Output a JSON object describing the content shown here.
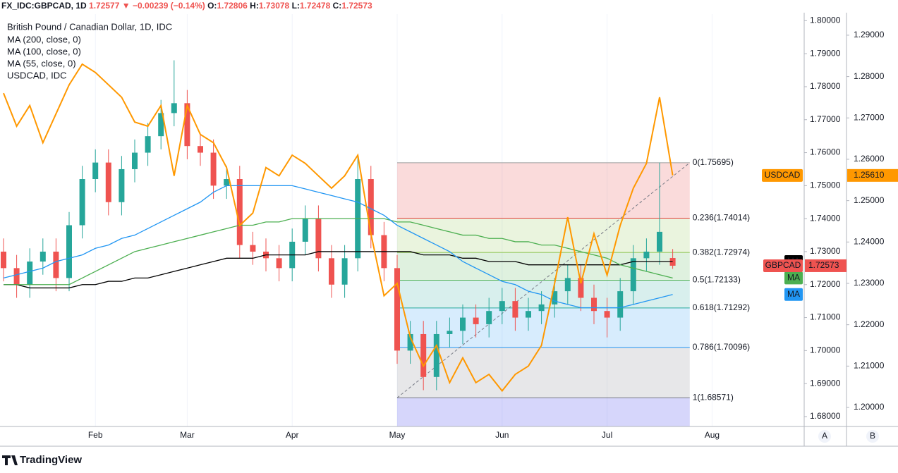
{
  "header": {
    "symbol": "FX_IDC:GBPCAD, 1D",
    "last": "1.72577",
    "arrow": "▼",
    "change": "−0.00239 (−0.14%)",
    "o_label": "O:",
    "o": "1.72806",
    "h_label": "H:",
    "h": "1.73078",
    "l_label": "L:",
    "l": "1.72478",
    "c_label": "C:",
    "c": "1.72573"
  },
  "chart_data": {
    "type": "candlestick",
    "title": "British Pound / Canadian Dollar, 1D, IDC",
    "categories": [
      null,
      null,
      null,
      null,
      null,
      null,
      null,
      "Feb",
      null,
      null,
      null,
      null,
      null,
      null,
      "Mar",
      null,
      null,
      null,
      null,
      null,
      null,
      null,
      "Apr",
      null,
      null,
      null,
      null,
      null,
      null,
      null,
      "May",
      null,
      null,
      null,
      null,
      null,
      null,
      null,
      "Jun",
      null,
      null,
      null,
      null,
      null,
      null,
      null,
      "Jul",
      null,
      null,
      null,
      null,
      null,
      null,
      null,
      "Aug"
    ],
    "open": [
      1.73,
      1.725,
      1.72,
      1.727,
      1.73,
      1.722,
      1.738,
      1.752,
      1.757,
      1.745,
      1.755,
      1.76,
      1.765,
      1.772,
      1.775,
      1.762,
      1.76,
      1.75,
      1.752,
      1.732,
      1.73,
      1.728,
      1.725,
      1.733,
      1.74,
      1.728,
      1.72,
      1.728,
      1.752,
      1.735,
      1.725,
      1.7,
      1.705,
      1.692,
      1.705,
      1.706,
      1.71,
      1.708,
      1.712,
      1.715,
      1.71,
      1.712,
      1.714,
      1.718,
      1.722,
      1.716,
      1.712,
      1.71,
      1.718,
      1.728,
      1.73,
      1.72806,
      null,
      null,
      null
    ],
    "high": [
      1.734,
      1.729,
      1.731,
      1.734,
      1.734,
      1.742,
      1.756,
      1.761,
      1.761,
      1.759,
      1.764,
      1.769,
      1.776,
      1.788,
      1.779,
      1.766,
      1.764,
      1.756,
      1.756,
      1.736,
      1.734,
      1.732,
      1.737,
      1.744,
      1.744,
      1.732,
      1.732,
      1.759,
      1.756,
      1.739,
      1.729,
      1.709,
      1.709,
      1.709,
      1.71,
      1.714,
      1.714,
      1.716,
      1.719,
      1.719,
      1.716,
      1.718,
      1.722,
      1.726,
      1.726,
      1.72,
      1.716,
      1.722,
      1.732,
      1.734,
      1.757,
      1.73078,
      null,
      null,
      null
    ],
    "low": [
      1.721,
      1.716,
      1.716,
      1.723,
      1.718,
      1.718,
      1.734,
      1.748,
      1.741,
      1.741,
      1.751,
      1.756,
      1.761,
      1.768,
      1.758,
      1.756,
      1.746,
      1.746,
      1.728,
      1.726,
      1.724,
      1.721,
      1.721,
      1.729,
      1.724,
      1.716,
      1.716,
      1.724,
      1.731,
      1.721,
      1.696,
      1.696,
      1.688,
      1.688,
      1.701,
      1.702,
      1.704,
      1.704,
      1.708,
      1.706,
      1.706,
      1.708,
      1.71,
      1.714,
      1.712,
      1.708,
      1.704,
      1.706,
      1.714,
      1.724,
      1.726,
      1.72478,
      null,
      null,
      null
    ],
    "close": [
      1.725,
      1.72,
      1.727,
      1.73,
      1.722,
      1.738,
      1.752,
      1.757,
      1.745,
      1.755,
      1.76,
      1.765,
      1.772,
      1.775,
      1.762,
      1.76,
      1.75,
      1.752,
      1.732,
      1.73,
      1.728,
      1.725,
      1.733,
      1.74,
      1.728,
      1.72,
      1.728,
      1.752,
      1.735,
      1.725,
      1.7,
      1.705,
      1.692,
      1.705,
      1.706,
      1.71,
      1.708,
      1.712,
      1.715,
      1.71,
      1.712,
      1.714,
      1.718,
      1.722,
      1.716,
      1.712,
      1.71,
      1.718,
      1.728,
      1.73,
      1.736,
      1.72573,
      null,
      null,
      null
    ],
    "up_color": "#26a69a",
    "down_color": "#ef5350",
    "ylim": [
      1.677,
      1.802
    ],
    "yticks": [
      {
        "value": 1.68,
        "label": "1.68000"
      },
      {
        "value": 1.69,
        "label": "1.69000"
      },
      {
        "value": 1.7,
        "label": "1.70000"
      },
      {
        "value": 1.71,
        "label": "1.71000"
      },
      {
        "value": 1.72,
        "label": "1.72000"
      },
      {
        "value": 1.73,
        "label": "1.73000"
      },
      {
        "value": 1.74,
        "label": "1.74000"
      },
      {
        "value": 1.75,
        "label": "1.75000"
      },
      {
        "value": 1.76,
        "label": "1.76000"
      },
      {
        "value": 1.77,
        "label": "1.77000"
      },
      {
        "value": 1.78,
        "label": "1.78000"
      },
      {
        "value": 1.79,
        "label": "1.79000"
      },
      {
        "value": 1.8,
        "label": "1.80000"
      }
    ],
    "y2lim": [
      1.1954,
      1.2951
    ],
    "y2ticks": [
      {
        "value": 1.2,
        "label": "1.20000"
      },
      {
        "value": 1.21,
        "label": "1.21000"
      },
      {
        "value": 1.22,
        "label": "1.22000"
      },
      {
        "value": 1.23,
        "label": "1.23000"
      },
      {
        "value": 1.24,
        "label": "1.24000"
      },
      {
        "value": 1.25,
        "label": "1.25000"
      },
      {
        "value": 1.26,
        "label": "1.26000"
      },
      {
        "value": 1.27,
        "label": "1.27000"
      },
      {
        "value": 1.28,
        "label": "1.28000"
      },
      {
        "value": 1.29,
        "label": "1.29000"
      }
    ],
    "grid": true,
    "series": [
      {
        "name": "MA (200, close, 0)",
        "tag": "MA",
        "color": "#000000",
        "values": [
          1.72,
          1.72,
          1.719,
          1.719,
          1.719,
          1.719,
          1.72,
          1.72,
          1.721,
          1.721,
          1.722,
          1.722,
          1.723,
          1.724,
          1.725,
          1.726,
          1.727,
          1.728,
          1.728,
          1.728,
          1.729,
          1.729,
          1.729,
          1.729,
          1.73,
          1.73,
          1.73,
          1.73,
          1.73,
          1.73,
          1.73,
          1.73,
          1.729,
          1.729,
          1.729,
          1.728,
          1.728,
          1.727,
          1.727,
          1.727,
          1.726,
          1.726,
          1.726,
          1.726,
          1.726,
          1.726,
          1.726,
          1.726,
          1.727,
          1.727,
          1.727,
          1.727,
          null,
          null,
          null
        ]
      },
      {
        "name": "MA (100, close, 0)",
        "tag": "MA",
        "color": "#4caf50",
        "values": [
          1.72,
          1.72,
          1.72,
          1.72,
          1.72,
          1.72,
          1.722,
          1.724,
          1.726,
          1.728,
          1.73,
          1.731,
          1.732,
          1.733,
          1.734,
          1.735,
          1.736,
          1.737,
          1.738,
          1.738,
          1.739,
          1.739,
          1.74,
          1.74,
          1.74,
          1.74,
          1.74,
          1.74,
          1.74,
          1.74,
          1.739,
          1.739,
          1.738,
          1.737,
          1.736,
          1.735,
          1.735,
          1.734,
          1.734,
          1.733,
          1.733,
          1.732,
          1.732,
          1.731,
          1.73,
          1.729,
          1.728,
          1.726,
          1.725,
          1.724,
          1.723,
          1.722,
          null,
          null,
          null
        ]
      },
      {
        "name": "MA (55, close, 0)",
        "tag": "MA",
        "color": "#2196f3",
        "values": [
          1.722,
          1.723,
          1.724,
          1.725,
          1.727,
          1.728,
          1.729,
          1.731,
          1.732,
          1.734,
          1.735,
          1.737,
          1.739,
          1.741,
          1.743,
          1.745,
          1.748,
          1.75,
          1.75,
          1.75,
          1.75,
          1.75,
          1.75,
          1.749,
          1.748,
          1.747,
          1.746,
          1.745,
          1.743,
          1.741,
          1.738,
          1.736,
          1.734,
          1.732,
          1.73,
          1.727,
          1.725,
          1.723,
          1.721,
          1.72,
          1.718,
          1.717,
          1.715,
          1.714,
          1.713,
          1.713,
          1.713,
          1.713,
          1.714,
          1.715,
          1.716,
          1.717,
          null,
          null,
          null
        ]
      },
      {
        "name": "USDCAD, IDC",
        "tag": "USDCAD",
        "color": "#ff9800",
        "axis": "y2",
        "last_label": "1.25610",
        "values": [
          1.276,
          1.268,
          1.273,
          1.264,
          1.271,
          1.278,
          1.283,
          1.281,
          1.278,
          1.275,
          1.269,
          1.268,
          1.273,
          1.256,
          1.273,
          1.266,
          1.264,
          1.258,
          1.244,
          1.247,
          1.258,
          1.256,
          1.261,
          1.259,
          1.256,
          1.253,
          1.256,
          1.261,
          1.242,
          1.227,
          1.23,
          1.217,
          1.21,
          1.215,
          1.206,
          1.212,
          1.206,
          1.208,
          1.204,
          1.208,
          1.21,
          1.215,
          1.23,
          1.246,
          1.23,
          1.242,
          1.232,
          1.244,
          1.253,
          1.259,
          1.275,
          1.2561,
          null,
          null,
          null
        ]
      }
    ],
    "price_tag": {
      "name": "GBPCAD",
      "label": "1.72573",
      "color": "#ef5350"
    },
    "fib": {
      "levels": [
        {
          "label": "0(1.75695)",
          "value": 1.75695,
          "color": "#9e9e9e"
        },
        {
          "label": "0.236(1.74014)",
          "value": 1.74014,
          "color": "#e53935"
        },
        {
          "label": "0.382(1.72974)",
          "value": 1.72974,
          "color": "#8bc34a"
        },
        {
          "label": "0.5(1.72133)",
          "value": 1.72133,
          "color": "#4caf50"
        },
        {
          "label": "0.618(1.71292)",
          "value": 1.71292,
          "color": "#26a69a"
        },
        {
          "label": "0.786(1.70096)",
          "value": 1.70096,
          "color": "#2196f3"
        },
        {
          "label": "1(1.68571)",
          "value": 1.68571,
          "color": "#787b86"
        }
      ],
      "below_color": "#5c5cf0"
    }
  },
  "footer": {
    "brand": "TradingView",
    "buttons": [
      "A",
      "B"
    ]
  }
}
